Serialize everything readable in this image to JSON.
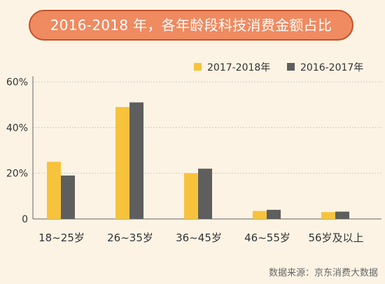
{
  "title": "2016-2018 年，各年龄段科技消费金额占比",
  "source": "数据来源：京东消费大数据",
  "colors": {
    "background": "#fdf3e4",
    "title_fill": "#f08a60",
    "title_border": "#c2532a",
    "axis": "#666666",
    "text": "#333333",
    "source_text": "#666666"
  },
  "chart_data": {
    "type": "bar",
    "categories": [
      "18~25岁",
      "26~35岁",
      "36~45岁",
      "46~55岁",
      "56岁及以上"
    ],
    "series": [
      {
        "name": "2017-2018年",
        "color": "#f7c33d",
        "values": [
          25,
          49,
          20,
          3.5,
          3
        ]
      },
      {
        "name": "2016-2017年",
        "color": "#5e5e5e",
        "values": [
          19,
          51,
          22,
          4,
          3.2
        ]
      }
    ],
    "ylim": [
      0,
      60
    ],
    "yticks": [
      0,
      20,
      40,
      60
    ],
    "ytick_labels": [
      "0",
      "20%",
      "40%",
      "60%"
    ],
    "grid": true,
    "legend_position": "top-right",
    "unit": "%"
  }
}
